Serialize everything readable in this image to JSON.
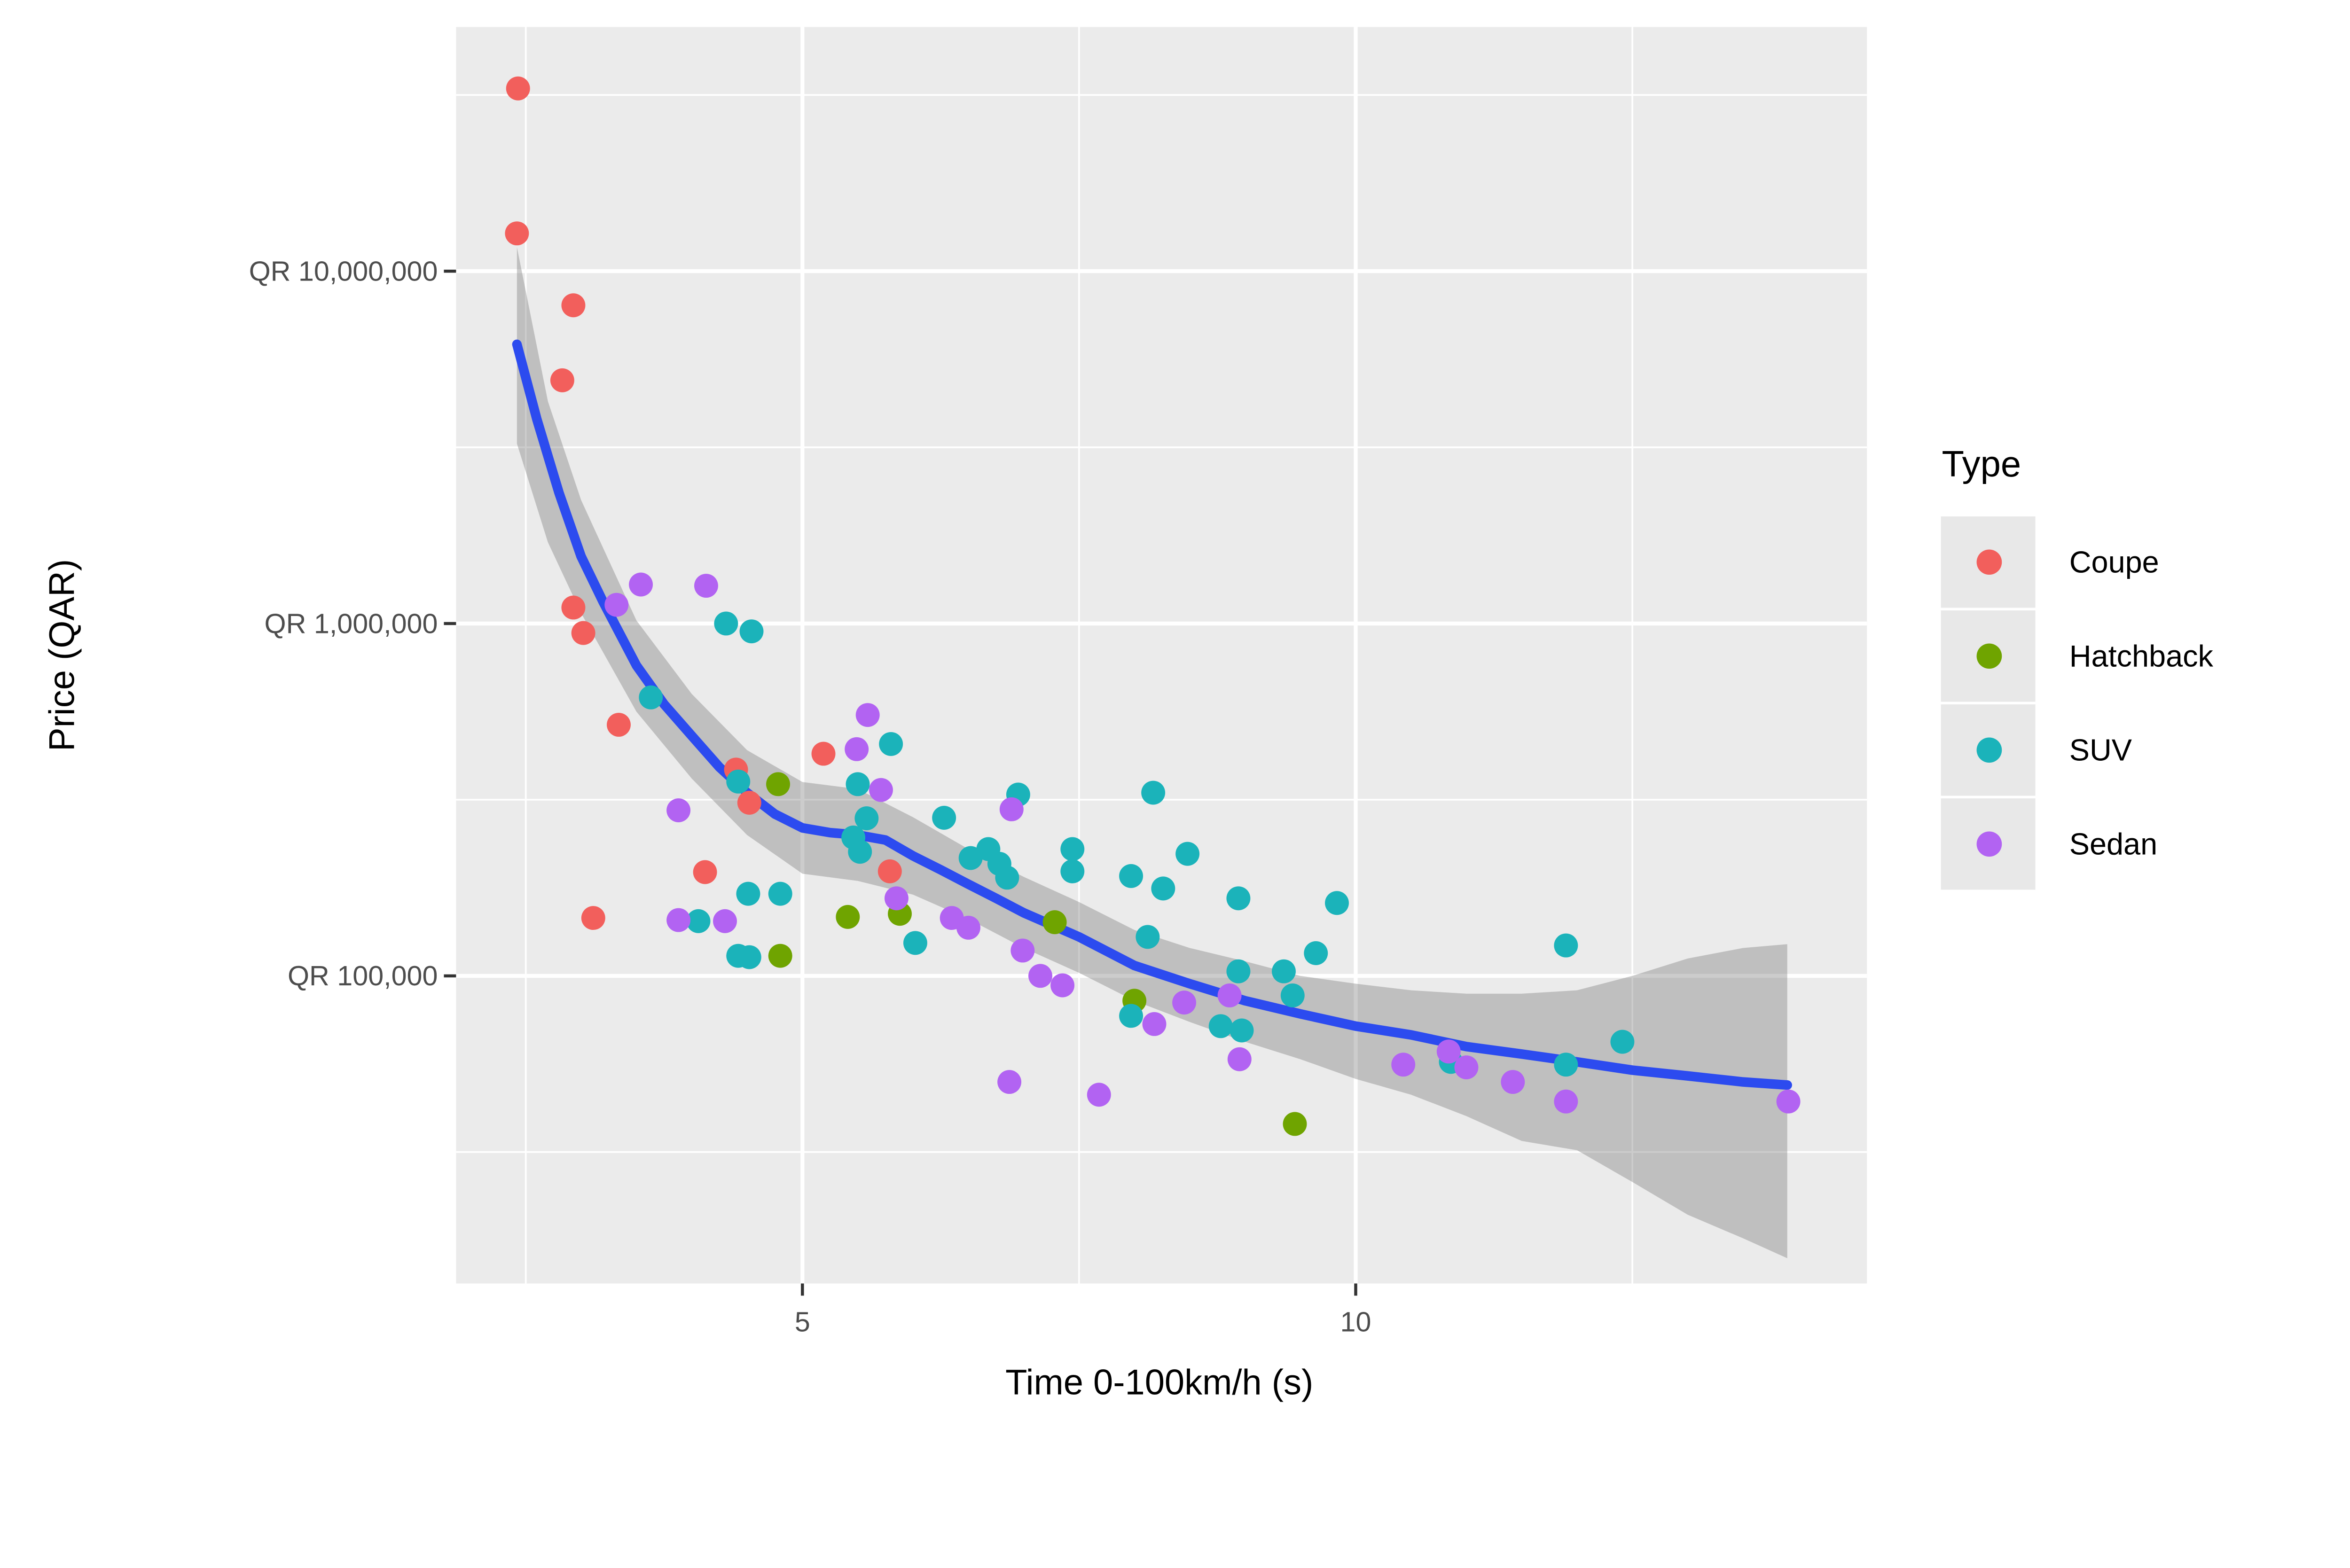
{
  "chart_data": {
    "type": "scatter",
    "title": "",
    "xlabel": "Time 0-100km/h (s)",
    "ylabel": "Price (QAR)",
    "x_axis": {
      "min": 1.87,
      "max": 14.62,
      "ticks": [
        {
          "v": 5,
          "label": "5"
        },
        {
          "v": 10,
          "label": "10"
        }
      ],
      "minor": [
        2.5,
        7.5,
        12.5
      ]
    },
    "y_axis": {
      "scale": "log10",
      "log_min": 4.127,
      "log_max": 7.693,
      "ticks": [
        {
          "v": 10000000,
          "label": "QR 10,000,000"
        },
        {
          "v": 1000000,
          "label": "QR 1,000,000"
        },
        {
          "v": 100000,
          "label": "QR 100,000"
        }
      ],
      "minor": [
        31622777,
        3162278,
        316228,
        31623
      ]
    },
    "grid": {
      "major_color": "#FFFFFF",
      "minor_color": "#FFFFFF",
      "panel_color": "#EBEBEB"
    },
    "legend": {
      "title": "Type",
      "position": "right",
      "entries": [
        {
          "label": "Coupe",
          "color": "#F25F5C"
        },
        {
          "label": "Hatchback",
          "color": "#6FA400"
        },
        {
          "label": "SUV",
          "color": "#1BB3BA"
        },
        {
          "label": "Sedan",
          "color": "#B263F2"
        }
      ]
    },
    "series": [
      {
        "name": "Coupe",
        "color": "#F25F5C",
        "points": [
          [
            2.43,
            33000000
          ],
          [
            2.42,
            12800000
          ],
          [
            2.93,
            8000000
          ],
          [
            2.83,
            4900000
          ],
          [
            2.93,
            1110000
          ],
          [
            3.02,
            940000
          ],
          [
            3.34,
            516000
          ],
          [
            4.4,
            385000
          ],
          [
            4.52,
            310000
          ],
          [
            5.19,
            427000
          ],
          [
            3.11,
            146000
          ],
          [
            4.12,
            197000
          ],
          [
            5.79,
            198000
          ]
        ]
      },
      {
        "name": "Hatchback",
        "color": "#6FA400",
        "points": [
          [
            4.78,
            350000
          ],
          [
            4.8,
            114000
          ],
          [
            5.41,
            147000
          ],
          [
            5.88,
            150000
          ],
          [
            7.28,
            142000
          ],
          [
            8.0,
            85000
          ],
          [
            9.45,
            38000
          ]
        ]
      },
      {
        "name": "SUV",
        "color": "#1BB3BA",
        "points": [
          [
            4.31,
            1000000
          ],
          [
            4.54,
            950000
          ],
          [
            3.63,
            617000
          ],
          [
            5.8,
            455000
          ],
          [
            4.42,
            356000
          ],
          [
            5.5,
            350000
          ],
          [
            5.58,
            280000
          ],
          [
            5.46,
            247000
          ],
          [
            5.52,
            225000
          ],
          [
            6.28,
            281000
          ],
          [
            6.95,
            327000
          ],
          [
            6.52,
            216000
          ],
          [
            6.68,
            229000
          ],
          [
            6.78,
            208000
          ],
          [
            6.85,
            190000
          ],
          [
            7.44,
            229000
          ],
          [
            7.44,
            198000
          ],
          [
            7.97,
            192000
          ],
          [
            8.12,
            129000
          ],
          [
            8.26,
            177000
          ],
          [
            8.48,
            222000
          ],
          [
            8.17,
            331000
          ],
          [
            8.94,
            166000
          ],
          [
            9.83,
            161000
          ],
          [
            9.64,
            116000
          ],
          [
            8.94,
            103000
          ],
          [
            9.35,
            103000
          ],
          [
            9.43,
            88000
          ],
          [
            6.02,
            124000
          ],
          [
            4.51,
            171000
          ],
          [
            4.8,
            171000
          ],
          [
            4.06,
            143000
          ],
          [
            4.42,
            114000
          ],
          [
            4.52,
            113000
          ],
          [
            7.97,
            77000
          ],
          [
            8.78,
            72000
          ],
          [
            8.97,
            70000
          ],
          [
            10.86,
            57000
          ],
          [
            11.9,
            122000
          ],
          [
            11.9,
            56000
          ],
          [
            12.41,
            65000
          ]
        ]
      },
      {
        "name": "Sedan",
        "color": "#B263F2",
        "points": [
          [
            3.54,
            1290000
          ],
          [
            4.13,
            1280000
          ],
          [
            3.32,
            1130000
          ],
          [
            5.59,
            550000
          ],
          [
            5.49,
            440000
          ],
          [
            5.71,
            337000
          ],
          [
            6.89,
            297000
          ],
          [
            3.88,
            295000
          ],
          [
            3.88,
            144000
          ],
          [
            4.3,
            143000
          ],
          [
            5.85,
            166000
          ],
          [
            6.35,
            146000
          ],
          [
            6.5,
            137000
          ],
          [
            6.99,
            118000
          ],
          [
            7.15,
            100000
          ],
          [
            7.35,
            94000
          ],
          [
            6.87,
            50000
          ],
          [
            7.68,
            46000
          ],
          [
            8.18,
            73000
          ],
          [
            8.45,
            84000
          ],
          [
            8.86,
            88000
          ],
          [
            8.95,
            58000
          ],
          [
            10.43,
            56000
          ],
          [
            10.84,
            61000
          ],
          [
            11.0,
            55000
          ],
          [
            11.42,
            50000
          ],
          [
            11.9,
            44000
          ],
          [
            13.91,
            44000
          ]
        ]
      }
    ],
    "smooth_line": {
      "name": "loess-fit",
      "color": "#2C4BEF",
      "points": [
        [
          2.42,
          6200000
        ],
        [
          2.6,
          3800000
        ],
        [
          2.8,
          2350000
        ],
        [
          3.0,
          1550000
        ],
        [
          3.2,
          1150000
        ],
        [
          3.5,
          760000
        ],
        [
          3.75,
          590000
        ],
        [
          4.0,
          480000
        ],
        [
          4.25,
          391000
        ],
        [
          4.5,
          331000
        ],
        [
          4.75,
          288000
        ],
        [
          5.0,
          263000
        ],
        [
          5.25,
          255000
        ],
        [
          5.5,
          251000
        ],
        [
          5.75,
          243000
        ],
        [
          6.0,
          219000
        ],
        [
          6.25,
          200000
        ],
        [
          6.5,
          182000
        ],
        [
          6.75,
          166000
        ],
        [
          7.0,
          151000
        ],
        [
          7.5,
          129000
        ],
        [
          8.0,
          107000
        ],
        [
          8.5,
          95000
        ],
        [
          9.0,
          85000
        ],
        [
          9.5,
          78000
        ],
        [
          10.0,
          72000
        ],
        [
          10.5,
          68000
        ],
        [
          11.0,
          63000
        ],
        [
          11.5,
          60000
        ],
        [
          12.0,
          57000
        ],
        [
          12.5,
          54000
        ],
        [
          13.0,
          52000
        ],
        [
          13.5,
          50000
        ],
        [
          13.9,
          49000
        ]
      ]
    },
    "confidence_band": {
      "name": "loess-confidence-band",
      "color": "rgba(110,110,110,0.35)",
      "x": [
        2.42,
        2.7,
        3.0,
        3.5,
        4.0,
        4.5,
        5.0,
        5.5,
        6.0,
        6.5,
        7.0,
        7.5,
        8.0,
        8.5,
        9.0,
        9.5,
        10.0,
        10.5,
        11.0,
        11.5,
        12.0,
        12.5,
        13.0,
        13.5,
        13.9
      ],
      "upper": [
        11700000,
        4270000,
        2240000,
        1020000,
        631000,
        437000,
        355000,
        339000,
        282000,
        229000,
        191000,
        162000,
        135000,
        120000,
        110000,
        100000,
        95000,
        91000,
        89000,
        89000,
        91000,
        100000,
        112000,
        120000,
        123000
      ],
      "lower": [
        3240000,
        1700000,
        1070000,
        562000,
        363000,
        251000,
        195000,
        186000,
        170000,
        145000,
        120000,
        102000,
        85000,
        74000,
        65000,
        58000,
        51000,
        46000,
        40000,
        34000,
        32000,
        26000,
        21000,
        18000,
        15800
      ]
    }
  }
}
